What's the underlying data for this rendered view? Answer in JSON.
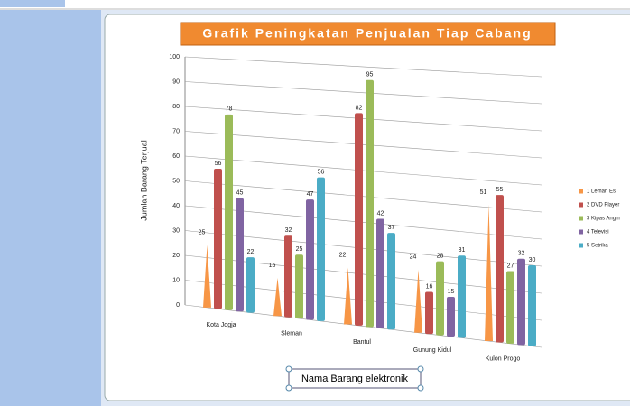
{
  "chart_data": {
    "type": "bar",
    "title": "Grafik Peningkatan Penjualan Tiap Cabang",
    "y_label": "Jumlah Barang Terjual",
    "x_label": "Nama Barang elektronik",
    "categories": [
      "Kota Jogja",
      "Sleman",
      "Bantul",
      "Gunung Kidul",
      "Kulon Progo"
    ],
    "series": [
      {
        "name": "1 Lemari Es",
        "color": "#f79646",
        "values": [
          25,
          15,
          22,
          24,
          51
        ]
      },
      {
        "name": "2 DVD Player",
        "color": "#c0504d",
        "values": [
          56,
          32,
          82,
          16,
          55
        ]
      },
      {
        "name": "3 Kipas Angin",
        "color": "#9bbb59",
        "values": [
          78,
          25,
          95,
          28,
          27
        ]
      },
      {
        "name": "4 Televisi",
        "color": "#8064a2",
        "values": [
          45,
          47,
          42,
          15,
          32
        ]
      },
      {
        "name": "5 Setrika",
        "color": "#4bacc6",
        "values": [
          22,
          56,
          37,
          31,
          30
        ]
      }
    ],
    "ylim": [
      0,
      100
    ],
    "yticks": [
      0,
      10,
      20,
      30,
      40,
      50,
      60,
      70,
      80,
      90,
      100
    ],
    "grid": true
  }
}
